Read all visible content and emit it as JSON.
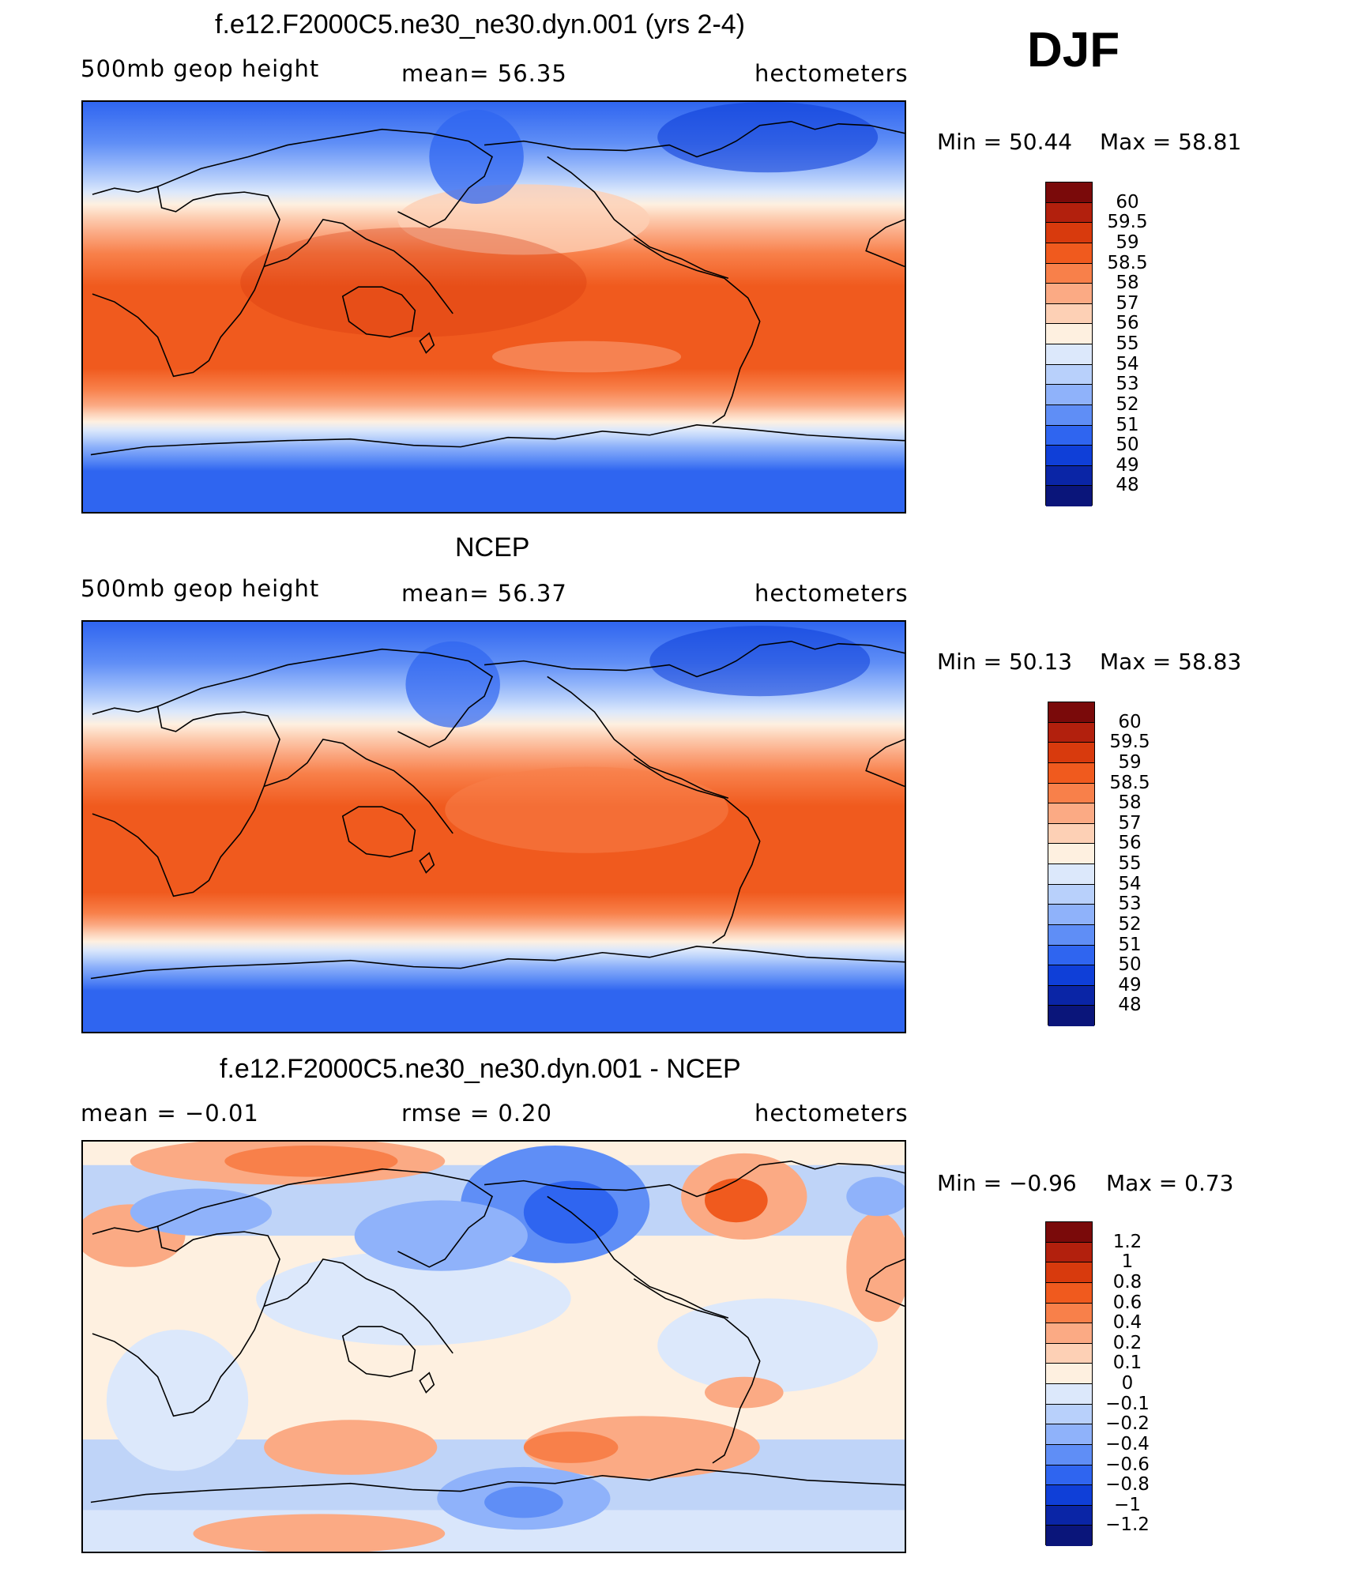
{
  "season": "DJF",
  "units": "hectometers",
  "panels": [
    {
      "id": "model",
      "title": "f.e12.F2000C5.ne30_ne30.dyn.001 (yrs 2-4)",
      "variable": "500mb geop height",
      "stat_text": "mean=  56.35",
      "units": "hectometers",
      "min_text": "Min =   50.44",
      "max_text": "Max =   58.81",
      "colorbar_labels": [
        "60",
        "59.5",
        "59",
        "58.5",
        "58",
        "57",
        "56",
        "55",
        "54",
        "53",
        "52",
        "51",
        "50",
        "49",
        "48"
      ],
      "colorbar_colors": [
        "#7a0a0a",
        "#b2200d",
        "#d83a0d",
        "#f05a1e",
        "#f8804a",
        "#fbaa84",
        "#fdd0b5",
        "#fef0e0",
        "#dce8fb",
        "#b8d0fb",
        "#8fb2fa",
        "#5f8ef6",
        "#2f65f0",
        "#0f3fd8",
        "#0a25a6",
        "#0a157a"
      ],
      "field": "geopotential"
    },
    {
      "id": "ncep",
      "title": "NCEP",
      "variable": "500mb geop height",
      "stat_text": "mean=  56.37",
      "units": "hectometers",
      "min_text": "Min =   50.13",
      "max_text": "Max =   58.83",
      "colorbar_labels": [
        "60",
        "59.5",
        "59",
        "58.5",
        "58",
        "57",
        "56",
        "55",
        "54",
        "53",
        "52",
        "51",
        "50",
        "49",
        "48"
      ],
      "colorbar_colors": [
        "#7a0a0a",
        "#b2200d",
        "#d83a0d",
        "#f05a1e",
        "#f8804a",
        "#fbaa84",
        "#fdd0b5",
        "#fef0e0",
        "#dce8fb",
        "#b8d0fb",
        "#8fb2fa",
        "#5f8ef6",
        "#2f65f0",
        "#0f3fd8",
        "#0a25a6",
        "#0a157a"
      ],
      "field": "geopotential"
    },
    {
      "id": "diff",
      "title": "f.e12.F2000C5.ne30_ne30.dyn.001 - NCEP",
      "variable": "mean =   −0.01",
      "stat_text": "rmse =    0.20",
      "units": "hectometers",
      "min_text": "Min =   −0.96",
      "max_text": "Max =    0.73",
      "colorbar_labels": [
        "1.2",
        "1",
        "0.8",
        "0.6",
        "0.4",
        "0.2",
        "0.1",
        "0",
        "−0.1",
        "−0.2",
        "−0.4",
        "−0.6",
        "−0.8",
        "−1",
        "−1.2"
      ],
      "colorbar_colors": [
        "#7a0a0a",
        "#b2200d",
        "#d83a0d",
        "#f05a1e",
        "#f8804a",
        "#fbaa84",
        "#fdd0b5",
        "#fef0e0",
        "#dce8fb",
        "#b8d0fb",
        "#8fb2fa",
        "#5f8ef6",
        "#2f65f0",
        "#0f3fd8",
        "#0a25a6",
        "#0a157a"
      ],
      "field": "difference"
    }
  ]
}
